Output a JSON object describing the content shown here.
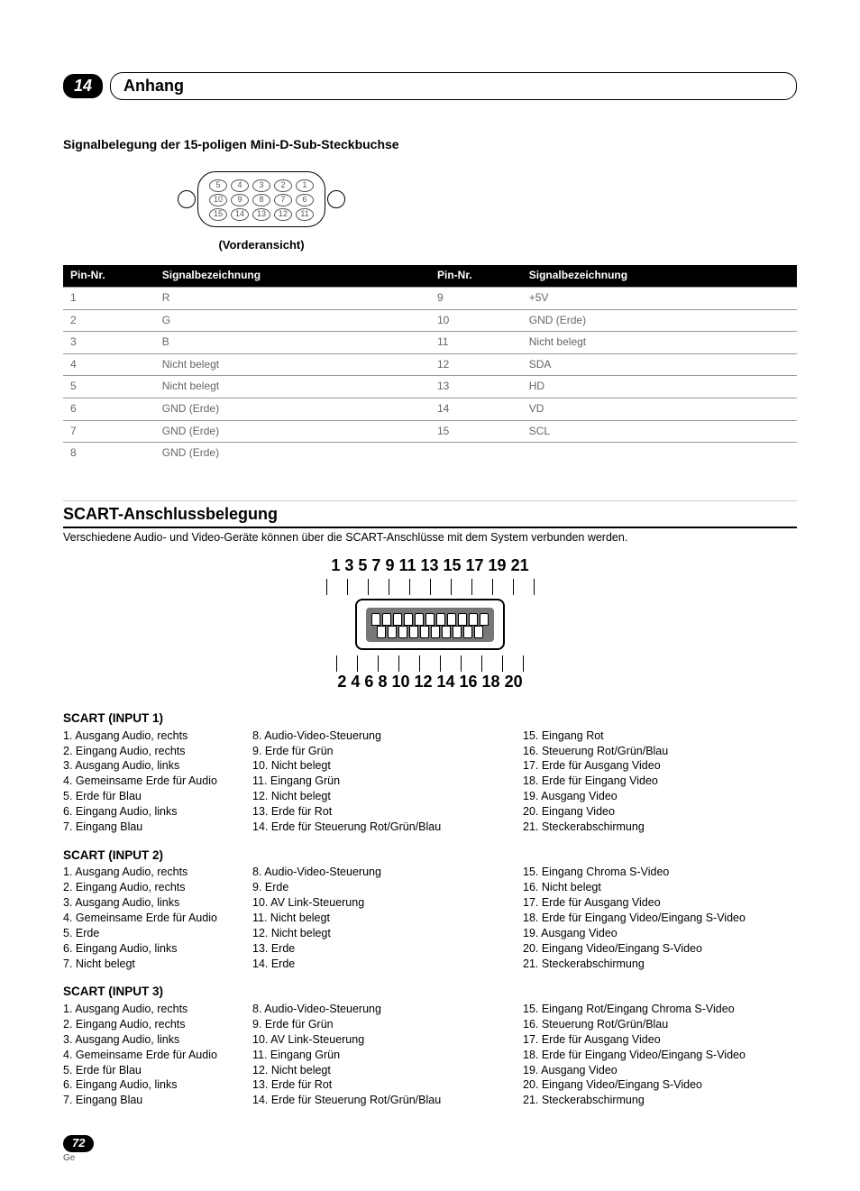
{
  "chapter": {
    "number": "14",
    "title": "Anhang"
  },
  "dsub": {
    "heading": "Signalbelegung der 15-poligen Mini-D-Sub-Steckbuchse",
    "front_label": "(Vorderansicht)",
    "pin_rows": [
      [
        "5",
        "4",
        "3",
        "2",
        "1"
      ],
      [
        "10",
        "9",
        "8",
        "7",
        "6"
      ],
      [
        "15",
        "14",
        "13",
        "12",
        "11"
      ]
    ],
    "headers": [
      "Pin-Nr.",
      "Signalbezeichnung",
      "Pin-Nr.",
      "Signalbezeichnung"
    ],
    "rows": [
      [
        "1",
        "R",
        "9",
        "+5V"
      ],
      [
        "2",
        "G",
        "10",
        "GND (Erde)"
      ],
      [
        "3",
        "B",
        "11",
        "Nicht belegt"
      ],
      [
        "4",
        "Nicht belegt",
        "12",
        "SDA"
      ],
      [
        "5",
        "Nicht belegt",
        "13",
        "HD"
      ],
      [
        "6",
        "GND (Erde)",
        "14",
        "VD"
      ],
      [
        "7",
        "GND (Erde)",
        "15",
        "SCL"
      ],
      [
        "8",
        "GND (Erde)",
        "",
        ""
      ]
    ]
  },
  "scart": {
    "title": "SCART-Anschlussbelegung",
    "subtitle": "Verschiedene Audio- und Video-Geräte können über die SCART-Anschlüsse mit dem System verbunden werden.",
    "top_numbers": "1  3  5  7  9 11 13 15 17 19 21",
    "bottom_numbers": "2  4  6  8 10 12 14 16 18 20",
    "groups": [
      {
        "title": "SCART (INPUT 1)",
        "cols": [
          [
            "1.  Ausgang Audio, rechts",
            "2.  Eingang Audio, rechts",
            "3.  Ausgang Audio, links",
            "4.  Gemeinsame Erde für Audio",
            "5.  Erde für Blau",
            "6.  Eingang Audio, links",
            "7.  Eingang Blau"
          ],
          [
            "8.  Audio-Video-Steuerung",
            "9.  Erde für Grün",
            "10. Nicht belegt",
            "11. Eingang Grün",
            "12. Nicht belegt",
            "13. Erde für Rot",
            "14. Erde für Steuerung Rot/Grün/Blau"
          ],
          [
            "15. Eingang Rot",
            "16. Steuerung Rot/Grün/Blau",
            "17. Erde für Ausgang Video",
            "18. Erde für Eingang Video",
            "19. Ausgang Video",
            "20. Eingang Video",
            "21. Steckerabschirmung"
          ]
        ]
      },
      {
        "title": "SCART (INPUT 2)",
        "cols": [
          [
            "1.  Ausgang Audio, rechts",
            "2.  Eingang Audio, rechts",
            "3.  Ausgang Audio, links",
            "4.  Gemeinsame Erde für Audio",
            "5.  Erde",
            "6.  Eingang Audio, links",
            "7.  Nicht belegt"
          ],
          [
            "8.  Audio-Video-Steuerung",
            "9.  Erde",
            "10. AV Link-Steuerung",
            "11. Nicht belegt",
            "12. Nicht belegt",
            "13. Erde",
            "14. Erde"
          ],
          [
            "15. Eingang Chroma S-Video",
            "16. Nicht belegt",
            "17. Erde für Ausgang Video",
            "18. Erde für Eingang Video/Eingang S-Video",
            "19. Ausgang Video",
            "20. Eingang Video/Eingang S-Video",
            "21. Steckerabschirmung"
          ]
        ]
      },
      {
        "title": "SCART (INPUT 3)",
        "cols": [
          [
            "1.  Ausgang Audio, rechts",
            "2.  Eingang Audio, rechts",
            "3.  Ausgang Audio, links",
            "4.  Gemeinsame Erde für Audio",
            "5.  Erde für Blau",
            "6.  Eingang Audio, links",
            "7.  Eingang Blau"
          ],
          [
            "8.  Audio-Video-Steuerung",
            "9.  Erde für Grün",
            "10. AV Link-Steuerung",
            "11. Eingang Grün",
            "12. Nicht belegt",
            "13. Erde für Rot",
            "14. Erde für Steuerung Rot/Grün/Blau"
          ],
          [
            "15. Eingang Rot/Eingang Chroma S-Video",
            "16. Steuerung Rot/Grün/Blau",
            "17. Erde für Ausgang Video",
            "18. Erde für Eingang Video/Eingang S-Video",
            "19. Ausgang Video",
            "20. Eingang Video/Eingang S-Video",
            "21. Steckerabschirmung"
          ]
        ]
      }
    ]
  },
  "footer": {
    "page": "72",
    "lang": "Ge"
  },
  "colors": {
    "black": "#000000",
    "grey_text": "#666666",
    "rule": "#999999"
  }
}
